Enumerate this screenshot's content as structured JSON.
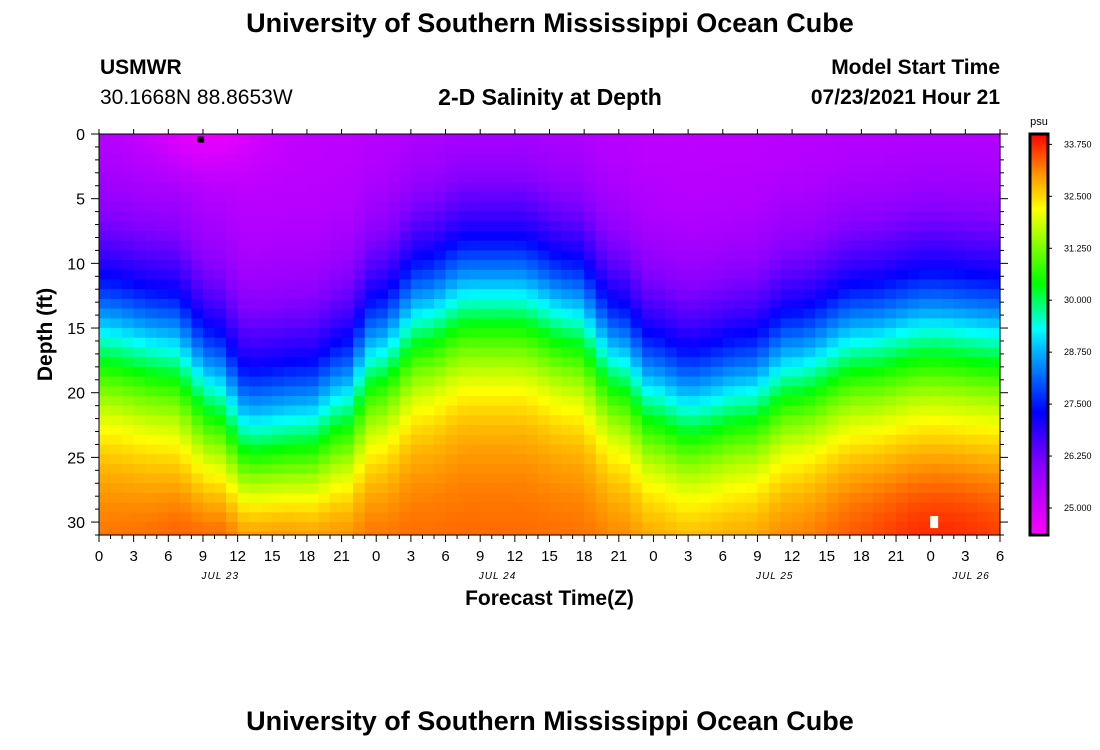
{
  "header": {
    "title": "University of Southern Mississippi Ocean Cube",
    "station": "USMWR",
    "coordinates": "30.1668N  88.8653W",
    "subtitle": "2-D Salinity at Depth",
    "model_start_label": "Model Start Time",
    "model_start_value": "07/23/2021 Hour 21"
  },
  "footer": {
    "title": "University of Southern Mississippi Ocean Cube"
  },
  "chart_data": {
    "type": "heatmap",
    "title": "2-D Salinity at Depth",
    "xlabel": "Forecast Time(Z)",
    "ylabel": "Depth (ft)",
    "x_range_hours": [
      0,
      78
    ],
    "x_tick_step_hours": 3,
    "x_tick_labels": [
      "0",
      "3",
      "6",
      "9",
      "12",
      "15",
      "18",
      "21",
      "0",
      "3",
      "6",
      "9",
      "12",
      "15",
      "18",
      "21",
      "0",
      "3",
      "6",
      "9",
      "12",
      "15",
      "18",
      "21",
      "0",
      "3",
      "6"
    ],
    "date_labels": [
      {
        "label": "JUL 23",
        "hour": 10.5
      },
      {
        "label": "JUL 24",
        "hour": 34.5
      },
      {
        "label": "JUL 25",
        "hour": 58.5
      },
      {
        "label": "JUL 26",
        "hour": 75.5
      }
    ],
    "y_range_ft": [
      0,
      31
    ],
    "y_inverted": true,
    "y_ticks": [
      0,
      5,
      10,
      15,
      20,
      25,
      30
    ],
    "y_minor_step": 1,
    "colorbar": {
      "unit": "psu",
      "min": 24.35,
      "max": 34.0,
      "tick_values": [
        25.0,
        26.25,
        27.5,
        28.75,
        30.0,
        31.25,
        32.5,
        33.75
      ],
      "tick_labels": [
        "25.000",
        "26.250",
        "27.500",
        "28.750",
        "30.000",
        "31.250",
        "32.500",
        "33.750"
      ],
      "stops": [
        {
          "value": 24.35,
          "color": "#ff00ff"
        },
        {
          "value": 26.0,
          "color": "#8800ff"
        },
        {
          "value": 27.3,
          "color": "#0000ff"
        },
        {
          "value": 28.75,
          "color": "#00b0ff"
        },
        {
          "value": 29.3,
          "color": "#00ffff"
        },
        {
          "value": 30.4,
          "color": "#00ff00"
        },
        {
          "value": 32.2,
          "color": "#ffff00"
        },
        {
          "value": 33.0,
          "color": "#ff9900"
        },
        {
          "value": 34.0,
          "color": "#ff0000"
        }
      ]
    },
    "grid": {
      "time_step_hours": 1,
      "depth_step_ft": 0.75,
      "surface_salinity": 25.2,
      "bottom_salinity": 33.4,
      "halocline_depth_by_hour": [
        {
          "hour": 0,
          "depth_ft": 15.5
        },
        {
          "hour": 6,
          "depth_ft": 16.5
        },
        {
          "hour": 10,
          "depth_ft": 19.5
        },
        {
          "hour": 13,
          "depth_ft": 22.5
        },
        {
          "hour": 18,
          "depth_ft": 22.0
        },
        {
          "hour": 21,
          "depth_ft": 20.5
        },
        {
          "hour": 24,
          "depth_ft": 17.0
        },
        {
          "hour": 28,
          "depth_ft": 14.0
        },
        {
          "hour": 32,
          "depth_ft": 12.5
        },
        {
          "hour": 36,
          "depth_ft": 12.5
        },
        {
          "hour": 41,
          "depth_ft": 14.0
        },
        {
          "hour": 45,
          "depth_ft": 17.5
        },
        {
          "hour": 48,
          "depth_ft": 20.0
        },
        {
          "hour": 51,
          "depth_ft": 21.0
        },
        {
          "hour": 56,
          "depth_ft": 20.0
        },
        {
          "hour": 60,
          "depth_ft": 18.0
        },
        {
          "hour": 66,
          "depth_ft": 16.0
        },
        {
          "hour": 72,
          "depth_ft": 15.0
        },
        {
          "hour": 78,
          "depth_ft": 15.5
        }
      ]
    },
    "markers": [
      {
        "hour": 8.8,
        "depth_ft": 0.2,
        "color": "#000000",
        "label": "observation-marker"
      },
      {
        "hour": 72.3,
        "depth_ft": 30.0,
        "color": "#ffffff",
        "label": "gap-marker"
      }
    ]
  }
}
